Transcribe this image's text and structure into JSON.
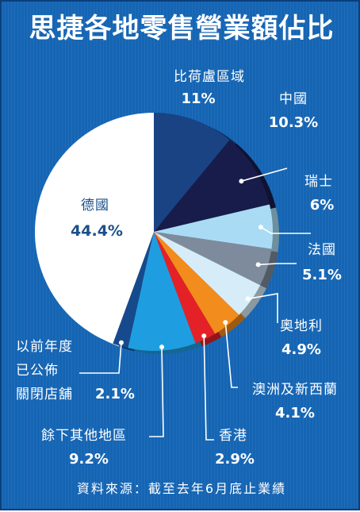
{
  "chart_data": {
    "type": "pie",
    "title": "思捷各地零售營業額佔比",
    "source": "資料來源：截至去年6月底止業績",
    "slices": [
      {
        "label": "比荷盧區域",
        "value": 11,
        "value_label": "11%",
        "color": "#1a4384"
      },
      {
        "label": "中國",
        "value": 10.3,
        "value_label": "10.3%",
        "color": "#171c4a"
      },
      {
        "label": "瑞士",
        "value": 6,
        "value_label": "6%",
        "color": "#a9dcf4"
      },
      {
        "label": "法國",
        "value": 5.1,
        "value_label": "5.1%",
        "color": "#7d8b9c"
      },
      {
        "label": "奧地利",
        "value": 4.9,
        "value_label": "4.9%",
        "color": "#d6ecf8"
      },
      {
        "label": "澳洲及新西蘭",
        "value": 4.1,
        "value_label": "4.1%",
        "color": "#f28c1c"
      },
      {
        "label": "香港",
        "value": 2.9,
        "value_label": "2.9%",
        "color": "#e32127"
      },
      {
        "label": "餘下其他地區",
        "value": 9.2,
        "value_label": "9.2%",
        "color": "#1e9ee0"
      },
      {
        "label_lines": [
          "以前年度",
          "已公佈",
          "關閉店舖"
        ],
        "value": 2.1,
        "value_label": "2.1%",
        "color": "#164a8c"
      },
      {
        "label": "德國",
        "value": 44.4,
        "value_label": "44.4%",
        "color": "#ffffff"
      }
    ]
  }
}
